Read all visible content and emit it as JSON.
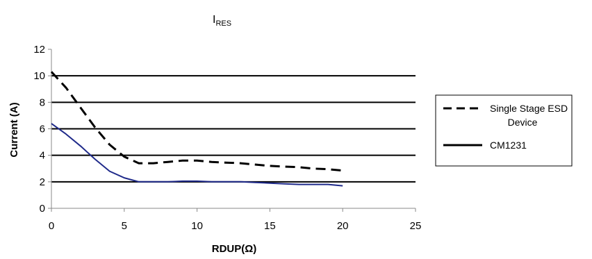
{
  "chart_data": {
    "type": "line",
    "title_main": "I",
    "title_sub": "RES",
    "xlabel": "RDUP(Ω)",
    "ylabel": "Current (A)",
    "xlim": [
      0,
      25
    ],
    "ylim": [
      0,
      12
    ],
    "xticks": [
      0,
      5,
      10,
      15,
      20,
      25
    ],
    "yticks": [
      0,
      2,
      4,
      6,
      8,
      10,
      12
    ],
    "grid": "horizontal major lines",
    "legend_position": "right",
    "series": [
      {
        "name": "Single Stage ESD Device",
        "name_lines": [
          "Single Stage ESD",
          "Device"
        ],
        "style": "dashed",
        "color": "#000000",
        "x": [
          0,
          1,
          2,
          3,
          4,
          5,
          6,
          7,
          8,
          9,
          10,
          11,
          12,
          13,
          14,
          15,
          16,
          17,
          18,
          19,
          20
        ],
        "y": [
          10.3,
          9.1,
          7.6,
          6.1,
          4.8,
          3.9,
          3.4,
          3.4,
          3.5,
          3.6,
          3.6,
          3.5,
          3.45,
          3.4,
          3.3,
          3.2,
          3.15,
          3.1,
          3.0,
          2.95,
          2.85
        ]
      },
      {
        "name": "CM1231",
        "name_lines": [
          "CM1231"
        ],
        "style": "solid",
        "color": "#1f2a8a",
        "legend_color": "#000000",
        "x": [
          0,
          1,
          2,
          3,
          4,
          5,
          6,
          7,
          8,
          9,
          10,
          11,
          12,
          13,
          14,
          15,
          16,
          17,
          18,
          19,
          20
        ],
        "y": [
          6.4,
          5.6,
          4.7,
          3.7,
          2.8,
          2.3,
          2.0,
          2.0,
          2.0,
          2.05,
          2.05,
          2.0,
          2.0,
          2.0,
          1.95,
          1.9,
          1.85,
          1.8,
          1.8,
          1.8,
          1.7
        ]
      }
    ]
  }
}
